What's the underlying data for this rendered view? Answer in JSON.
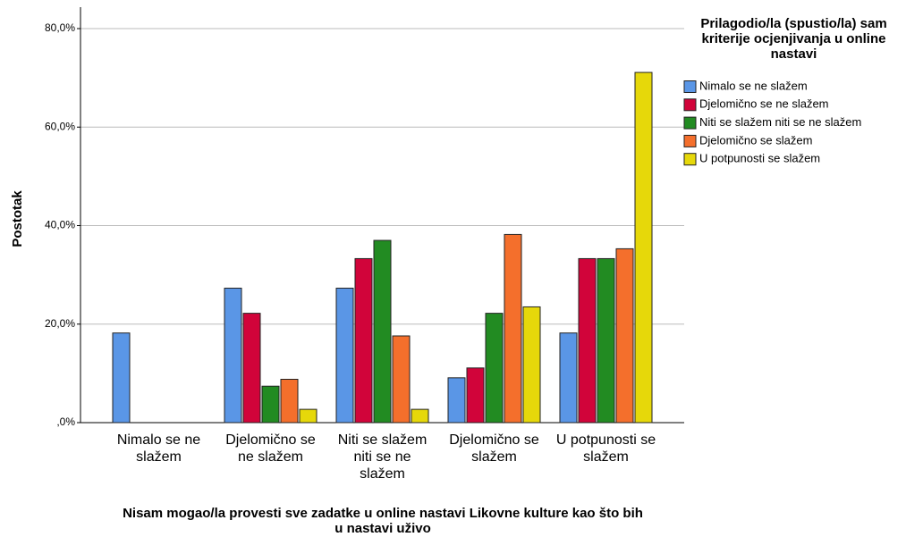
{
  "chart_data": {
    "type": "bar",
    "x_label": "Nisam mogao/la provesti sve zadatke u online nastavi Likovne kulture kao što bih u nastavi uživo",
    "y_label": "Postotak",
    "legend_title": "Prilagodio/la (spustio/la) sam kriterije ocjenjivanja u online nastavi",
    "categories": [
      "Nimalo se ne slažem",
      "Djelomično se ne slažem",
      "Niti se slažem niti se ne slažem",
      "Djelomično se slažem",
      "U potpunosti se slažem"
    ],
    "series": [
      {
        "name": "Nimalo se ne slažem",
        "color": "#5a96e6",
        "values": [
          18.2,
          27.3,
          27.3,
          9.1,
          18.2
        ]
      },
      {
        "name": "Djelomično se ne slažem",
        "color": "#d1043a",
        "values": [
          0,
          22.2,
          33.3,
          11.1,
          33.3
        ]
      },
      {
        "name": "Niti se slažem niti se ne slažem",
        "color": "#228b22",
        "values": [
          0,
          7.4,
          37.0,
          22.2,
          33.3
        ]
      },
      {
        "name": "Djelomično se slažem",
        "color": "#f46f2c",
        "values": [
          0,
          8.8,
          17.6,
          38.2,
          35.3
        ]
      },
      {
        "name": "U potpunosti se slažem",
        "color": "#e6d80a",
        "values": [
          0,
          2.7,
          2.7,
          23.5,
          71.1
        ]
      }
    ],
    "ylim": [
      0,
      80
    ],
    "yticks": [
      {
        "value": 0,
        "label": ",0%"
      },
      {
        "value": 20,
        "label": "20,0%"
      },
      {
        "value": 40,
        "label": "40,0%"
      },
      {
        "value": 60,
        "label": "60,0%"
      },
      {
        "value": 80,
        "label": "80,0%"
      }
    ],
    "grid": true,
    "legend_position": "right"
  }
}
